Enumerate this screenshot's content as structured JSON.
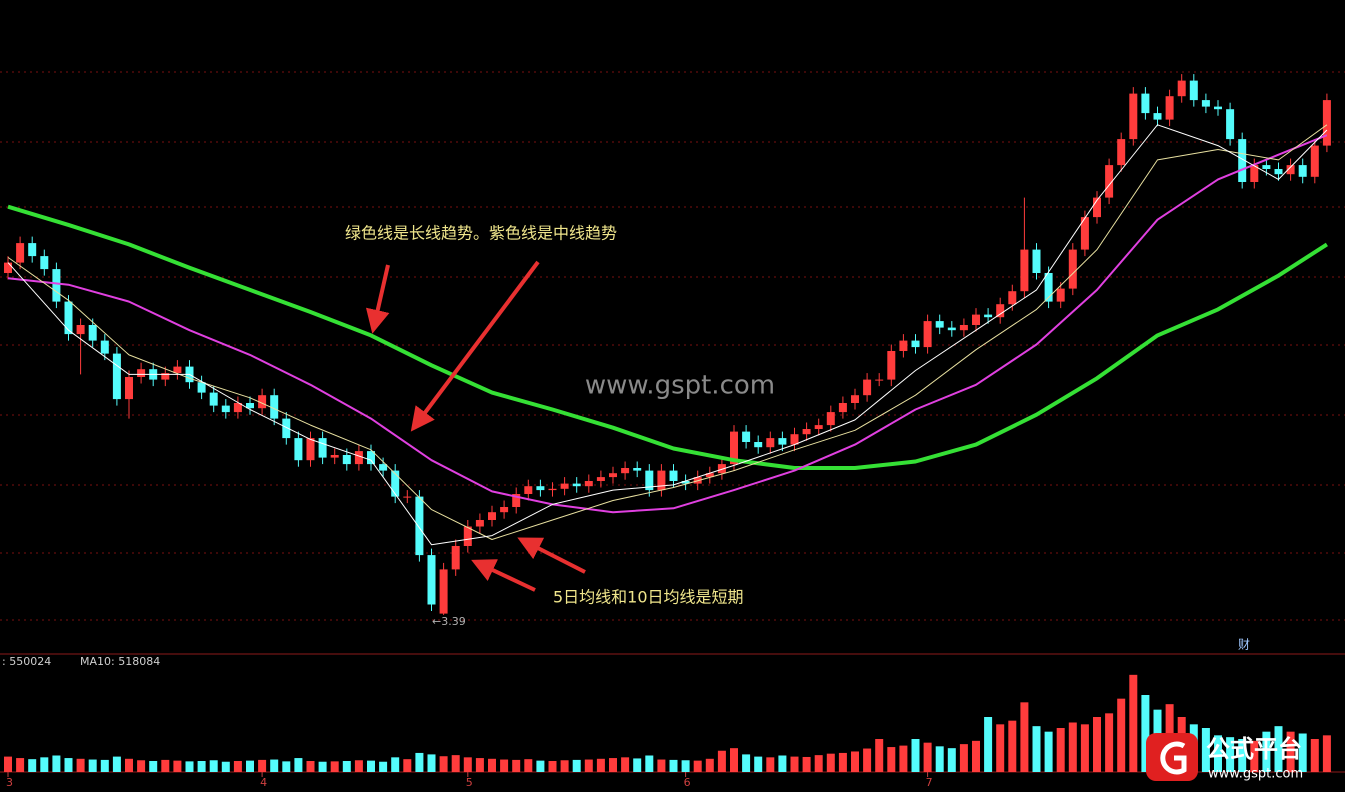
{
  "chart_data": {
    "type": "candlestick",
    "categories": [
      "3",
      null,
      null,
      null,
      null,
      null,
      null,
      null,
      null,
      null,
      null,
      null,
      null,
      null,
      null,
      null,
      null,
      null,
      null,
      null,
      null,
      "4",
      null,
      null,
      null,
      null,
      null,
      null,
      null,
      null,
      null,
      null,
      null,
      null,
      null,
      null,
      null,
      null,
      "5",
      null,
      null,
      null,
      null,
      null,
      null,
      null,
      null,
      null,
      null,
      null,
      null,
      null,
      null,
      null,
      null,
      null,
      "6",
      null,
      null,
      null,
      null,
      null,
      null,
      null,
      null,
      null,
      null,
      null,
      null,
      null,
      null,
      null,
      null,
      null,
      null,
      null,
      "7",
      null,
      null,
      null,
      null,
      null,
      null,
      null,
      null,
      null,
      null,
      null,
      null,
      null,
      null,
      null,
      null,
      null,
      null,
      null,
      null,
      null,
      null,
      null,
      null,
      null,
      null,
      null,
      null,
      null,
      null,
      null,
      null,
      null
    ],
    "open": [
      6.02,
      6.1,
      6.25,
      6.15,
      6.05,
      5.8,
      5.55,
      5.62,
      5.5,
      5.4,
      5.05,
      5.22,
      5.28,
      5.2,
      5.25,
      5.3,
      5.18,
      5.1,
      5.0,
      4.95,
      5.02,
      4.98,
      5.08,
      4.9,
      4.75,
      4.58,
      4.75,
      4.6,
      4.62,
      4.55,
      4.65,
      4.55,
      4.5,
      4.3,
      4.3,
      3.85,
      3.4,
      3.74,
      3.92,
      4.07,
      4.12,
      4.18,
      4.22,
      4.32,
      4.38,
      4.35,
      4.36,
      4.4,
      4.38,
      4.42,
      4.45,
      4.48,
      4.52,
      4.5,
      4.35,
      4.5,
      4.42,
      4.4,
      4.45,
      4.48,
      4.55,
      4.8,
      4.72,
      4.68,
      4.75,
      4.7,
      4.78,
      4.82,
      4.85,
      4.95,
      5.02,
      5.08,
      5.2,
      5.2,
      5.42,
      5.5,
      5.45,
      5.65,
      5.6,
      5.58,
      5.62,
      5.7,
      5.68,
      5.78,
      5.88,
      6.2,
      6.02,
      5.8,
      5.9,
      6.2,
      6.45,
      6.6,
      6.85,
      7.05,
      7.4,
      7.25,
      7.2,
      7.38,
      7.5,
      7.35,
      7.3,
      7.28,
      7.05,
      6.72,
      6.85,
      6.82,
      6.78,
      6.85,
      6.76,
      7.0
    ],
    "high": [
      6.15,
      6.3,
      6.3,
      6.2,
      6.1,
      5.85,
      5.67,
      5.67,
      5.55,
      5.45,
      5.27,
      5.33,
      5.33,
      5.3,
      5.35,
      5.35,
      5.23,
      5.15,
      5.05,
      5.07,
      5.07,
      5.13,
      5.13,
      4.95,
      4.8,
      4.8,
      4.8,
      4.67,
      4.67,
      4.7,
      4.7,
      4.6,
      4.55,
      4.35,
      4.35,
      3.9,
      3.79,
      3.97,
      4.12,
      4.17,
      4.23,
      4.27,
      4.37,
      4.43,
      4.43,
      4.41,
      4.45,
      4.45,
      4.47,
      4.5,
      4.53,
      4.57,
      4.57,
      4.55,
      4.55,
      4.55,
      4.47,
      4.5,
      4.53,
      4.6,
      4.85,
      4.85,
      4.77,
      4.8,
      4.8,
      4.83,
      4.87,
      4.9,
      5.0,
      5.07,
      5.13,
      5.25,
      5.25,
      5.47,
      5.55,
      5.55,
      5.7,
      5.7,
      5.65,
      5.67,
      5.75,
      5.75,
      5.83,
      5.93,
      6.6,
      6.25,
      6.07,
      5.95,
      6.25,
      6.5,
      6.65,
      6.9,
      7.1,
      7.45,
      7.45,
      7.3,
      7.43,
      7.55,
      7.55,
      7.4,
      7.35,
      7.33,
      7.1,
      6.9,
      6.9,
      6.87,
      6.9,
      6.9,
      7.05,
      7.4
    ],
    "low": [
      5.97,
      6.05,
      6.1,
      6.0,
      5.75,
      5.5,
      5.24,
      5.45,
      5.35,
      5.0,
      4.9,
      5.17,
      5.15,
      5.15,
      5.2,
      5.13,
      5.05,
      4.95,
      4.9,
      4.9,
      4.93,
      4.93,
      4.85,
      4.7,
      4.53,
      4.53,
      4.55,
      4.55,
      4.5,
      4.5,
      4.5,
      4.45,
      4.25,
      4.25,
      3.8,
      3.42,
      3.39,
      3.69,
      3.87,
      4.02,
      4.07,
      4.13,
      4.17,
      4.27,
      4.3,
      4.3,
      4.31,
      4.33,
      4.33,
      4.37,
      4.4,
      4.43,
      4.45,
      4.3,
      4.3,
      4.37,
      4.35,
      4.35,
      4.4,
      4.43,
      4.5,
      4.67,
      4.63,
      4.63,
      4.65,
      4.65,
      4.73,
      4.77,
      4.8,
      4.9,
      4.97,
      5.03,
      5.15,
      5.15,
      5.37,
      5.4,
      5.4,
      5.55,
      5.53,
      5.53,
      5.57,
      5.63,
      5.63,
      5.73,
      5.83,
      5.97,
      5.75,
      5.75,
      5.85,
      6.15,
      6.4,
      6.55,
      6.8,
      7.0,
      7.2,
      7.15,
      7.15,
      7.33,
      7.3,
      7.25,
      7.23,
      7.0,
      6.67,
      6.67,
      6.77,
      6.73,
      6.73,
      6.71,
      6.71,
      6.95
    ],
    "close": [
      6.1,
      6.25,
      6.15,
      6.05,
      5.8,
      5.55,
      5.62,
      5.5,
      5.4,
      5.05,
      5.22,
      5.28,
      5.2,
      5.25,
      5.3,
      5.18,
      5.1,
      5.0,
      4.95,
      5.02,
      4.98,
      5.08,
      4.9,
      4.75,
      4.58,
      4.75,
      4.6,
      4.62,
      4.55,
      4.65,
      4.55,
      4.5,
      4.3,
      4.3,
      3.85,
      3.47,
      3.74,
      3.92,
      4.07,
      4.12,
      4.18,
      4.22,
      4.32,
      4.38,
      4.35,
      4.36,
      4.4,
      4.38,
      4.42,
      4.45,
      4.48,
      4.52,
      4.5,
      4.35,
      4.5,
      4.42,
      4.4,
      4.45,
      4.48,
      4.55,
      4.8,
      4.72,
      4.68,
      4.75,
      4.7,
      4.78,
      4.82,
      4.85,
      4.95,
      5.02,
      5.08,
      5.2,
      5.2,
      5.42,
      5.5,
      5.45,
      5.65,
      5.6,
      5.58,
      5.62,
      5.7,
      5.68,
      5.78,
      5.88,
      6.2,
      6.02,
      5.8,
      5.9,
      6.2,
      6.45,
      6.6,
      6.85,
      7.05,
      7.4,
      7.25,
      7.2,
      7.38,
      7.5,
      7.35,
      7.3,
      7.28,
      7.05,
      6.72,
      6.85,
      6.82,
      6.78,
      6.85,
      6.76,
      7.0,
      7.35
    ],
    "up_color": "#ff3c3c",
    "down_color": "#54fcfc",
    "ylim": [
      3.12,
      8.12
    ],
    "series": [
      {
        "color": "#35e035",
        "x": [
          0,
          5,
          10,
          15,
          20,
          25,
          30,
          35,
          40,
          45,
          50,
          55,
          60,
          65,
          70,
          75,
          80,
          85,
          90,
          95,
          100,
          105,
          109
        ],
        "values": [
          6.53,
          6.39,
          6.24,
          6.06,
          5.89,
          5.72,
          5.54,
          5.31,
          5.1,
          4.97,
          4.83,
          4.67,
          4.58,
          4.52,
          4.52,
          4.57,
          4.7,
          4.93,
          5.21,
          5.54,
          5.74,
          6.0,
          6.24
        ]
      },
      {
        "color": "#e040e0",
        "x": [
          0,
          5,
          10,
          15,
          20,
          25,
          30,
          35,
          40,
          45,
          50,
          55,
          60,
          65,
          70,
          75,
          80,
          85,
          90,
          95,
          100,
          105,
          109
        ],
        "values": [
          5.98,
          5.93,
          5.8,
          5.58,
          5.39,
          5.16,
          4.9,
          4.58,
          4.34,
          4.24,
          4.18,
          4.21,
          4.35,
          4.5,
          4.7,
          4.97,
          5.16,
          5.47,
          5.89,
          6.43,
          6.74,
          6.93,
          7.08
        ]
      },
      {
        "color": "#e8e0a0",
        "x": [
          0,
          5,
          10,
          15,
          20,
          25,
          30,
          35,
          40,
          45,
          50,
          55,
          60,
          65,
          70,
          75,
          80,
          85,
          90,
          95,
          100,
          105,
          109
        ],
        "values": [
          6.14,
          5.81,
          5.39,
          5.21,
          5.06,
          4.85,
          4.66,
          4.2,
          3.97,
          4.12,
          4.27,
          4.37,
          4.5,
          4.66,
          4.81,
          5.08,
          5.43,
          5.74,
          6.2,
          6.89,
          6.97,
          6.89,
          7.16
        ]
      },
      {
        "color": "#ffffff",
        "x": [
          0,
          5,
          10,
          15,
          20,
          25,
          30,
          35,
          40,
          45,
          50,
          55,
          60,
          65,
          70,
          75,
          80,
          85,
          90,
          95,
          100,
          105,
          109
        ],
        "values": [
          6.1,
          5.58,
          5.24,
          5.24,
          4.97,
          4.74,
          4.58,
          3.93,
          4.0,
          4.24,
          4.35,
          4.39,
          4.54,
          4.7,
          4.89,
          5.27,
          5.58,
          5.89,
          6.58,
          7.16,
          7.0,
          6.74,
          7.12
        ]
      }
    ],
    "volume": {
      "ylim": [
        0,
        3000000
      ],
      "values": [
        420000,
        380000,
        350000,
        400000,
        450000,
        380000,
        360000,
        340000,
        330000,
        420000,
        360000,
        320000,
        300000,
        330000,
        310000,
        290000,
        300000,
        320000,
        280000,
        300000,
        310000,
        330000,
        340000,
        290000,
        380000,
        300000,
        280000,
        290000,
        300000,
        320000,
        310000,
        280000,
        400000,
        350000,
        520000,
        480000,
        430000,
        460000,
        400000,
        380000,
        360000,
        340000,
        330000,
        350000,
        310000,
        300000,
        320000,
        330000,
        340000,
        360000,
        380000,
        400000,
        370000,
        450000,
        340000,
        330000,
        320000,
        310000,
        360000,
        580000,
        650000,
        480000,
        420000,
        400000,
        450000,
        420000,
        410000,
        460000,
        500000,
        520000,
        560000,
        640000,
        900000,
        680000,
        720000,
        900000,
        800000,
        700000,
        650000,
        760000,
        850000,
        1500000,
        1300000,
        1400000,
        1900000,
        1250000,
        1100000,
        1200000,
        1350000,
        1300000,
        1500000,
        1600000,
        2000000,
        2650000,
        2100000,
        1700000,
        1850000,
        1500000,
        1300000,
        1200000,
        1000000,
        950000,
        900000,
        850000,
        1100000,
        1250000,
        1100000,
        1050000,
        900000,
        1000000
      ]
    },
    "annotations": {
      "trend_note": "绿色线是长线趋势。紫色线是中线趋势",
      "short_note": "5日均线和10日均线是短期",
      "low_label": "←3.39",
      "watermark": "www.gspt.com",
      "vol_ma5": ": 550024",
      "vol_ma10": "MA10: 518084",
      "side_tag": "财"
    },
    "logo": {
      "name": "公式平台",
      "url": "www.gspt.com"
    }
  }
}
